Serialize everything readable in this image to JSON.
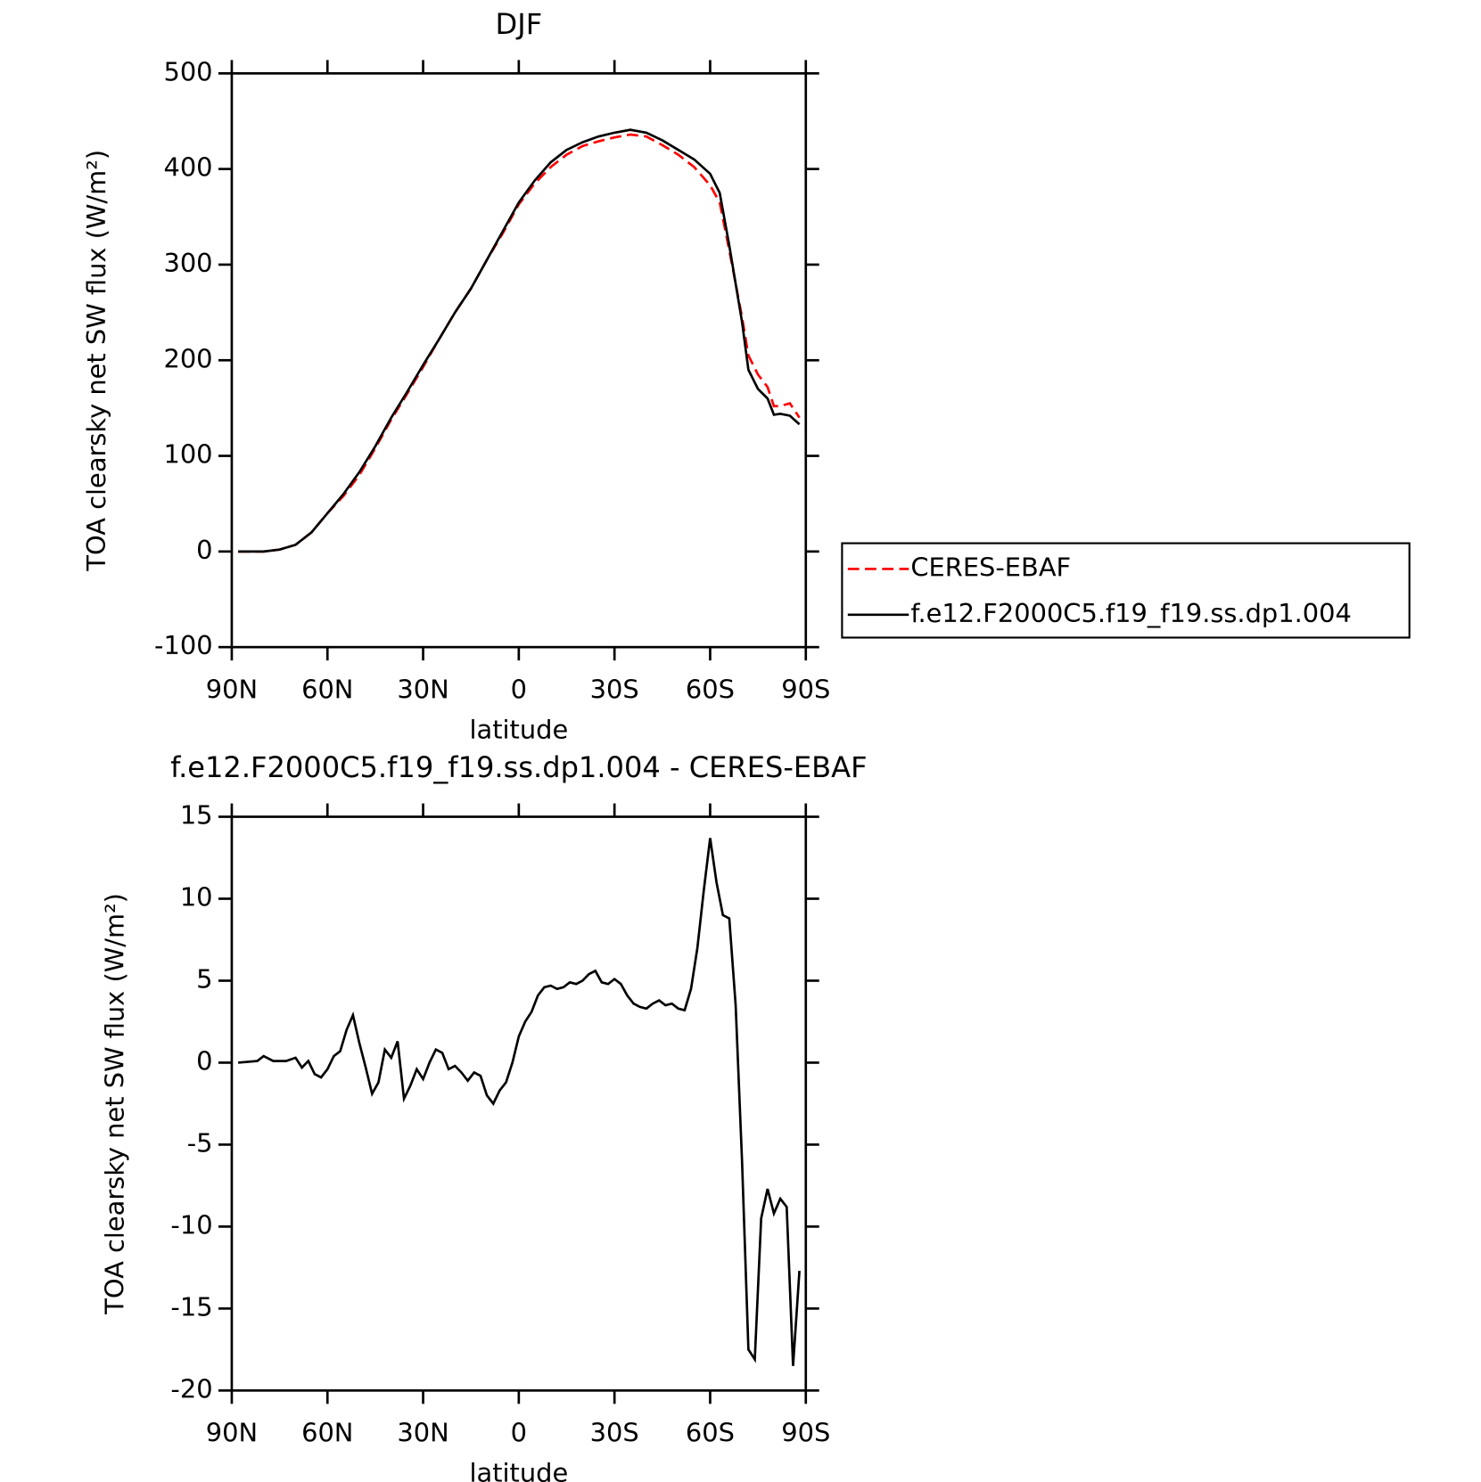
{
  "chart_data": [
    {
      "type": "line",
      "title": "DJF",
      "xlabel": "latitude",
      "ylabel": "TOA clearsky net SW flux (W/m²)",
      "x": [
        88,
        85,
        80,
        75,
        70,
        65,
        60,
        55,
        50,
        45,
        40,
        35,
        30,
        25,
        20,
        15,
        10,
        5,
        0,
        -5,
        -10,
        -15,
        -20,
        -25,
        -30,
        -35,
        -40,
        -45,
        -50,
        -55,
        -60,
        -63,
        -66,
        -70,
        -72,
        -75,
        -78,
        -80,
        -82,
        -85,
        -88
      ],
      "series": [
        {
          "name": "CERES-EBAF",
          "color": "#ff0000",
          "dash": true,
          "values": [
            0,
            0,
            0,
            2,
            7,
            20,
            40,
            58,
            80,
            108,
            138,
            165,
            193,
            222,
            250,
            275,
            305,
            333,
            363,
            385,
            402,
            415,
            424,
            429,
            433,
            436,
            434,
            425,
            415,
            402,
            383,
            365,
            315,
            245,
            205,
            185,
            172,
            152,
            152,
            155,
            140
          ]
        },
        {
          "name": "f.e12.F2000C5.f19_f19.ss.dp1.004",
          "color": "#000000",
          "dash": false,
          "values": [
            0,
            0,
            0,
            2,
            7,
            20,
            40,
            60,
            83,
            110,
            140,
            167,
            195,
            222,
            250,
            275,
            305,
            335,
            365,
            388,
            407,
            420,
            428,
            434,
            438,
            441,
            438,
            430,
            420,
            410,
            395,
            375,
            320,
            240,
            190,
            170,
            160,
            143,
            144,
            142,
            133
          ]
        }
      ],
      "xlim": [
        90,
        -90
      ],
      "ylim": [
        -100,
        500
      ],
      "xticks": [
        {
          "value": 90,
          "label": "90N"
        },
        {
          "value": 60,
          "label": "60N"
        },
        {
          "value": 30,
          "label": "30N"
        },
        0,
        {
          "value": -30,
          "label": "30S"
        },
        {
          "value": -60,
          "label": "60S"
        },
        {
          "value": -90,
          "label": "90S"
        }
      ],
      "yticks": [
        -100,
        0,
        100,
        200,
        300,
        400,
        500
      ]
    },
    {
      "type": "line",
      "title": "f.e12.F2000C5.f19_f19.ss.dp1.004 - CERES-EBAF",
      "xlabel": "latitude",
      "ylabel": "TOA clearsky net SW flux (W/m²)",
      "x": [
        88,
        82,
        80,
        77,
        73,
        70,
        68,
        66,
        64,
        62,
        60,
        58,
        56,
        54,
        52,
        50,
        48,
        46,
        44,
        42,
        40,
        38,
        36,
        34,
        32,
        30,
        28,
        26,
        24,
        22,
        20,
        18,
        16,
        14,
        12,
        10,
        8,
        6,
        4,
        2,
        0,
        -2,
        -4,
        -6,
        -8,
        -10,
        -12,
        -14,
        -16,
        -18,
        -20,
        -22,
        -24,
        -26,
        -28,
        -30,
        -32,
        -34,
        -36,
        -38,
        -40,
        -42,
        -44,
        -46,
        -48,
        -50,
        -52,
        -54,
        -56,
        -58,
        -60,
        -62,
        -64,
        -66,
        -68,
        -70,
        -72,
        -74,
        -76,
        -78,
        -80,
        -82,
        -84,
        -86,
        -88
      ],
      "values": [
        0,
        0.1,
        0.4,
        0.1,
        0.1,
        0.3,
        -0.3,
        0.1,
        -0.7,
        -0.9,
        -0.4,
        0.4,
        0.7,
        2,
        2.9,
        1.2,
        -0.3,
        -1.9,
        -1.2,
        0.8,
        0.3,
        1.3,
        -2.2,
        -1.4,
        -0.4,
        -1,
        0,
        0.8,
        0.6,
        -0.4,
        -0.2,
        -0.6,
        -1.1,
        -0.6,
        -0.8,
        -2,
        -2.5,
        -1.7,
        -1.2,
        0,
        1.6,
        2.5,
        3.1,
        4.1,
        4.6,
        4.7,
        4.5,
        4.6,
        4.9,
        4.8,
        5,
        5.4,
        5.6,
        4.9,
        4.8,
        5.1,
        4.8,
        4.1,
        3.6,
        3.4,
        3.3,
        3.6,
        3.8,
        3.5,
        3.6,
        3.3,
        3.2,
        4.5,
        7,
        10.5,
        13.7,
        11,
        9,
        8.8,
        3.5,
        -6,
        -17.5,
        -18.1,
        -9.5,
        -7.7,
        -9.2,
        -8.3,
        -8.8,
        -18.5,
        -12.7
      ],
      "color": "#000000",
      "xlim": [
        90,
        -90
      ],
      "ylim": [
        -20,
        15
      ],
      "xticks": [
        {
          "value": 90,
          "label": "90N"
        },
        {
          "value": 60,
          "label": "60N"
        },
        {
          "value": 30,
          "label": "30N"
        },
        0,
        {
          "value": -30,
          "label": "30S"
        },
        {
          "value": -60,
          "label": "60S"
        },
        {
          "value": -90,
          "label": "90S"
        }
      ],
      "yticks": [
        -20,
        -15,
        -10,
        -5,
        0,
        5,
        10,
        15
      ]
    }
  ]
}
